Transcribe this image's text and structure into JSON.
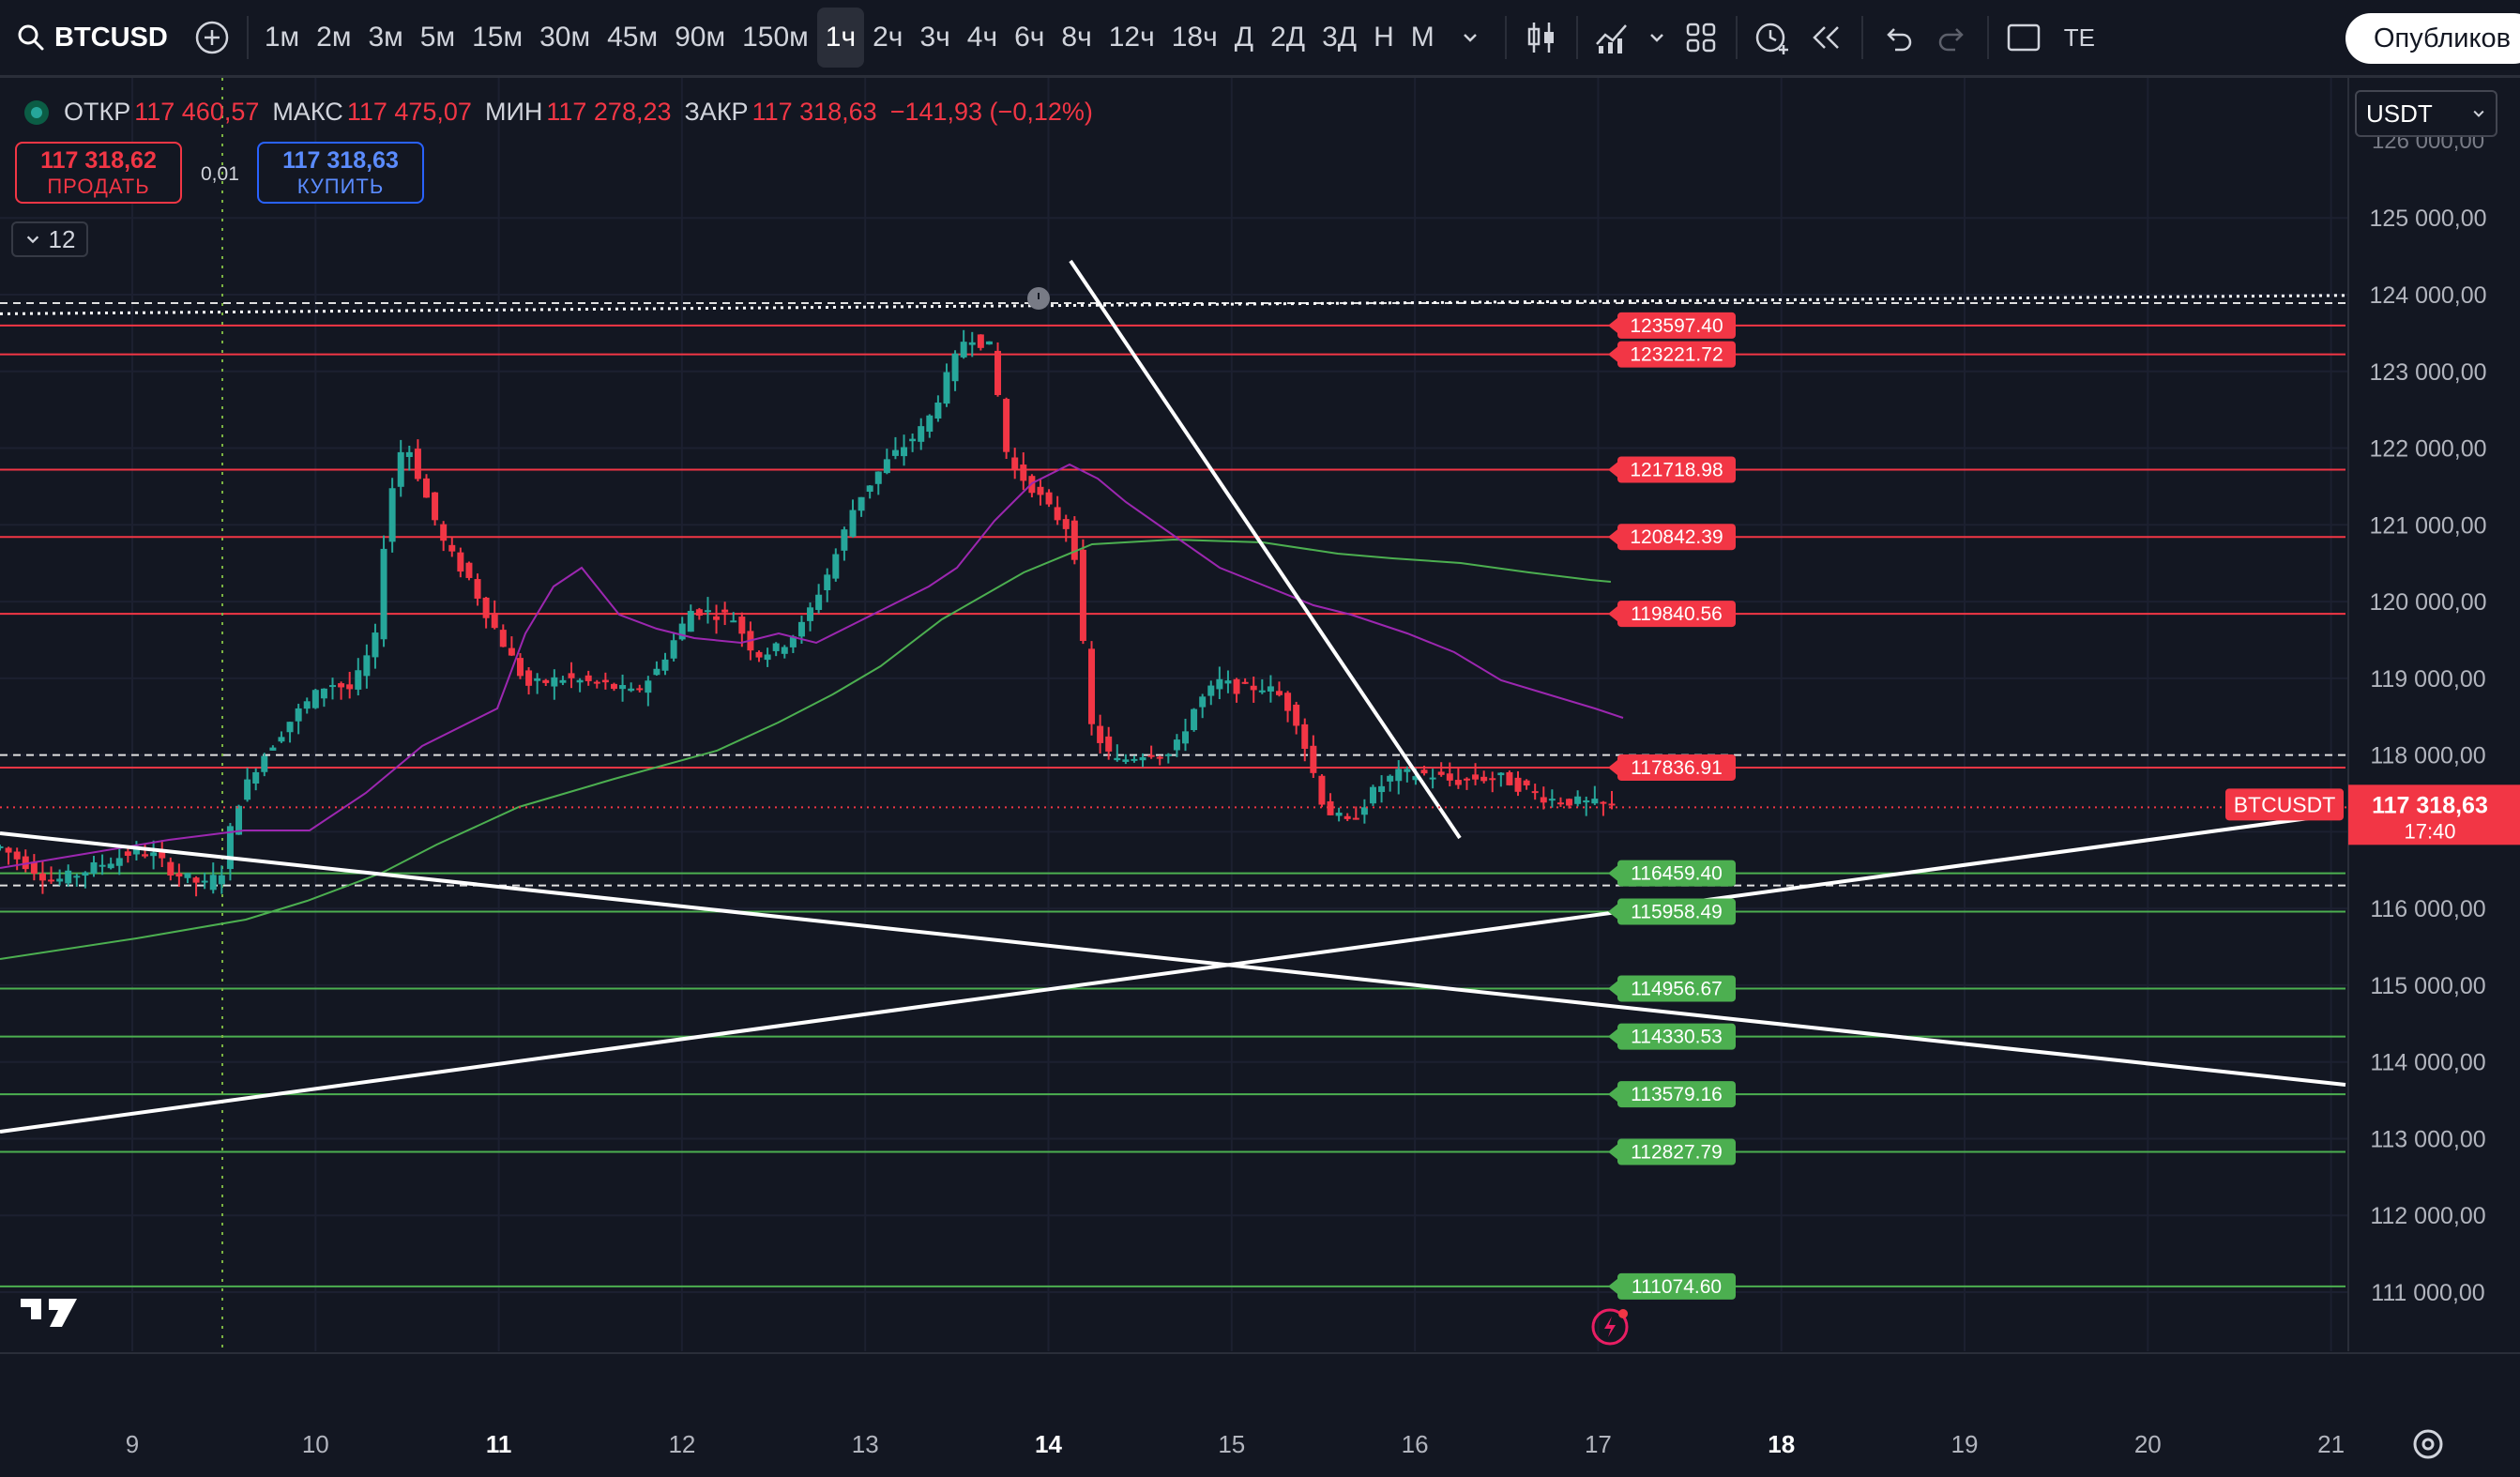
{
  "toolbar": {
    "symbol": "BTCUSD",
    "intervals": [
      "1м",
      "2м",
      "3м",
      "5м",
      "15м",
      "30м",
      "45м",
      "90м",
      "150м",
      "1ч",
      "2ч",
      "3ч",
      "4ч",
      "6ч",
      "8ч",
      "12ч",
      "18ч",
      "Д",
      "2Д",
      "3Д",
      "Н",
      "М"
    ],
    "active_interval": "1ч",
    "extra_label": "TE",
    "publish_label": "Опубликов"
  },
  "ohlc": {
    "open_label": "ОТКР",
    "open": "117 460,57",
    "high_label": "МАКС",
    "high": "117 475,07",
    "low_label": "МИН",
    "low": "117 278,23",
    "close_label": "ЗАКР",
    "close": "117 318,63",
    "change": "−141,93 (−0,12%)"
  },
  "trade": {
    "sell_price": "117 318,62",
    "sell_label": "ПРОДАТЬ",
    "spread": "0,01",
    "buy_price": "117 318,63",
    "buy_label": "КУПИТЬ"
  },
  "collapse_count": "12",
  "currency": "USDT",
  "price_axis": {
    "ticks": [
      "125 000,00",
      "124 000,00",
      "123 000,00",
      "122 000,00",
      "121 000,00",
      "120 000,00",
      "119 000,00",
      "118 000,00",
      "116 000,00",
      "115 000,00",
      "114 000,00",
      "113 000,00",
      "112 000,00",
      "111 000,00"
    ],
    "top_partial": "126 000,00",
    "current_label": "BTCUSDT",
    "current_price": "117 318,63",
    "countdown": "17:40"
  },
  "time_axis": {
    "ticks": [
      "9",
      "10",
      "11",
      "12",
      "13",
      "14",
      "15",
      "16",
      "17",
      "18",
      "19",
      "20",
      "21"
    ],
    "bold": [
      "11",
      "14",
      "18"
    ]
  },
  "levels": {
    "resistance": [
      "123597.40",
      "123221.72",
      "121718.98",
      "120842.39",
      "119840.56",
      "117836.91"
    ],
    "support": [
      "116459.40",
      "115958.49",
      "114956.67",
      "114330.53",
      "113579.16",
      "112827.79",
      "111074.60"
    ]
  },
  "colors": {
    "background": "#131722",
    "up": "#26a69a",
    "down": "#f23645",
    "ma_fast": "#9c27b0",
    "ma_slow": "#4caf50",
    "resistance": "#f23645",
    "support": "#4caf50"
  },
  "icons": [
    "search-icon",
    "add-symbol-icon",
    "chevron-down-icon",
    "candles-icon",
    "indicators-icon",
    "layout-grid-icon",
    "alert-icon",
    "replay-icon",
    "undo-icon",
    "redo-icon",
    "fullscreen-icon",
    "tradingview-logo",
    "lightning-icon",
    "settings-icon"
  ]
}
